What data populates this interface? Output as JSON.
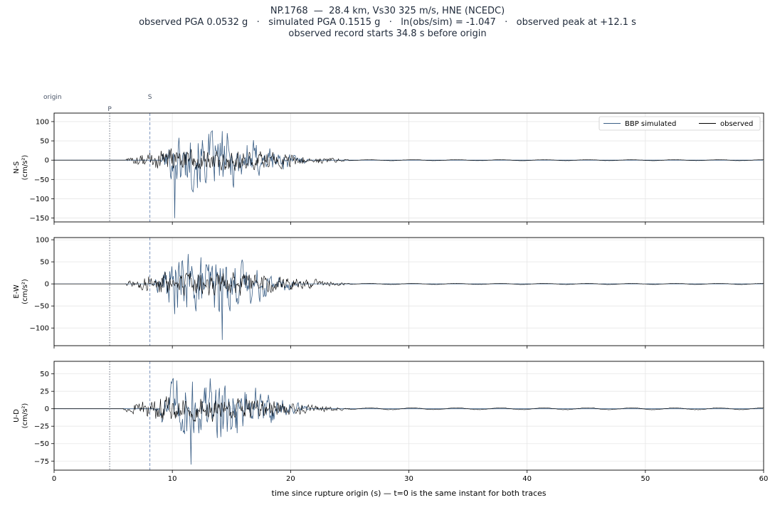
{
  "title_lines": [
    "NP.1768  —  28.4 km, Vs30 325 m/s, HNE (NCEDC)",
    "observed PGA 0.0532 g   ·   simulated PGA 0.1515 g   ·   ln(obs/sim) = -1.047   ·   observed peak at +12.1 s",
    "observed record starts 34.8 s before origin"
  ],
  "markers": {
    "origin": {
      "label": "origin",
      "t": 0
    },
    "p": {
      "label": "P",
      "t": 4.7
    },
    "s": {
      "label": "S",
      "t": 8.1
    }
  },
  "colors": {
    "simulated": "#3b5f86",
    "observed": "#000000",
    "p_line": "#6b7280",
    "s_line": "#7b93bd",
    "grid": "#e6e6e6"
  },
  "chart_data": {
    "type": "line",
    "xlabel": "time since rupture origin (s)   —   t=0 is the same instant for both traces",
    "xlim": [
      0,
      60
    ],
    "xticks": [
      0,
      10,
      20,
      30,
      40,
      50,
      60
    ],
    "grid": true,
    "legend": {
      "placement": "top-right",
      "entries": [
        "BBP simulated",
        "observed"
      ]
    },
    "panels": [
      {
        "ylabel": "N-S\n(cm/s²)",
        "ylim": [
          -160,
          122
        ],
        "yticks": [
          -150,
          -100,
          -50,
          0,
          50,
          100
        ],
        "simulated": {
          "onset": 9.0,
          "peak_t": 10.2,
          "peak": -150,
          "amp_max": 108,
          "end": 21.5
        },
        "observed": {
          "onset": 6.0,
          "amp_max": 38,
          "end": 25.0
        }
      },
      {
        "ylabel": "E-W\n(cm/s²)",
        "ylim": [
          -140,
          105
        ],
        "yticks": [
          -100,
          -50,
          0,
          50,
          100
        ],
        "simulated": {
          "onset": 8.5,
          "peak_t": 14.2,
          "peak": -127,
          "amp_max": 93,
          "end": 21.0
        },
        "observed": {
          "onset": 6.0,
          "amp_max": 35,
          "end": 25.0
        }
      },
      {
        "ylabel": "U-D\n(cm/s²)",
        "ylim": [
          -88,
          68
        ],
        "yticks": [
          -75,
          -50,
          -25,
          0,
          25,
          50
        ],
        "simulated": {
          "onset": 8.5,
          "peak_t": 11.6,
          "peak": -80,
          "amp_max": 65,
          "end": 21.5
        },
        "observed": {
          "onset": 5.8,
          "amp_max": 22,
          "end": 25.0
        }
      }
    ]
  }
}
